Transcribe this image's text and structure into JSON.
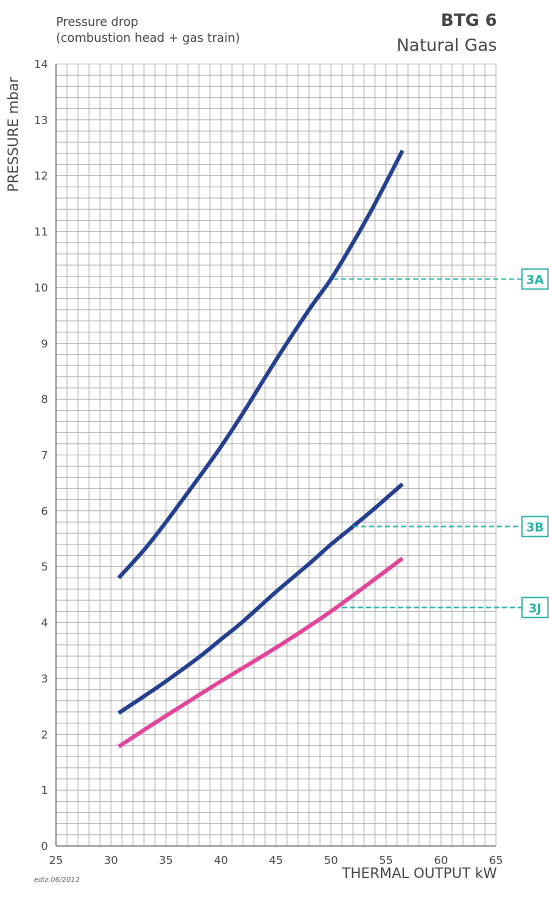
{
  "header": {
    "subtitle_line1": "Pressure drop",
    "subtitle_line2": "(combustion head + gas train)",
    "model": "BTG 6",
    "fuel": "Natural Gas"
  },
  "footer": {
    "edition": "ediz.06/2012"
  },
  "colors": {
    "grid": "#9a9a9a",
    "series_blue": "#243f8f",
    "series_pink": "#e2449a",
    "callout": "#2bb2a8"
  },
  "chart_data": {
    "type": "line",
    "xlabel": "THERMAL OUTPUT kW",
    "ylabel": "PRESSURE mbar",
    "xlim": [
      25,
      65
    ],
    "ylim": [
      0,
      14
    ],
    "x_ticks": [
      25,
      30,
      35,
      40,
      45,
      50,
      55,
      60,
      65
    ],
    "y_ticks": [
      0,
      1,
      2,
      3,
      4,
      5,
      6,
      7,
      8,
      9,
      10,
      11,
      12,
      13,
      14
    ],
    "grid": true,
    "series": [
      {
        "name": "3A",
        "color": "#243f8f",
        "x": [
          30.7,
          33,
          35,
          38,
          40,
          42,
          45,
          48,
          50,
          52,
          54,
          56.5
        ],
        "y": [
          4.8,
          5.3,
          5.8,
          6.6,
          7.15,
          7.75,
          8.7,
          9.6,
          10.15,
          10.8,
          11.5,
          12.45
        ]
      },
      {
        "name": "3B",
        "color": "#243f8f",
        "x": [
          30.7,
          33,
          35,
          38,
          40,
          42,
          45,
          48,
          50,
          52,
          54,
          56.5
        ],
        "y": [
          2.38,
          2.68,
          2.95,
          3.38,
          3.7,
          4.02,
          4.55,
          5.05,
          5.4,
          5.72,
          6.05,
          6.48
        ]
      },
      {
        "name": "3J",
        "color": "#e2449a",
        "x": [
          30.7,
          35,
          40,
          45,
          50,
          56.5
        ],
        "y": [
          1.78,
          2.33,
          2.95,
          3.55,
          4.2,
          5.15
        ]
      }
    ],
    "annotations": [
      {
        "label": "3A",
        "x": 50.2,
        "y": 10.15
      },
      {
        "label": "3B",
        "x": 52.0,
        "y": 5.72
      },
      {
        "label": "3J",
        "x": 51.0,
        "y": 4.27
      }
    ]
  }
}
